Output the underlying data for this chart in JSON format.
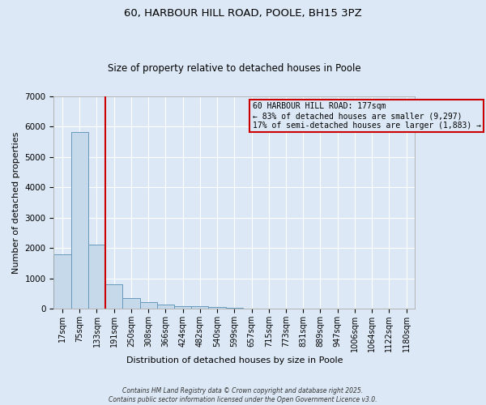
{
  "title1": "60, HARBOUR HILL ROAD, POOLE, BH15 3PZ",
  "title2": "Size of property relative to detached houses in Poole",
  "xlabel": "Distribution of detached houses by size in Poole",
  "ylabel": "Number of detached properties",
  "categories": [
    "17sqm",
    "75sqm",
    "133sqm",
    "191sqm",
    "250sqm",
    "308sqm",
    "366sqm",
    "424sqm",
    "482sqm",
    "540sqm",
    "599sqm",
    "657sqm",
    "715sqm",
    "773sqm",
    "831sqm",
    "889sqm",
    "947sqm",
    "1006sqm",
    "1064sqm",
    "1122sqm",
    "1180sqm"
  ],
  "bar_heights": [
    1800,
    5820,
    2100,
    820,
    350,
    220,
    130,
    90,
    80,
    60,
    30,
    5,
    5,
    0,
    0,
    0,
    0,
    0,
    0,
    0,
    0
  ],
  "bar_color": "#c6d9ea",
  "bar_edge_color": "#6699bb",
  "property_line_color": "#cc0000",
  "property_line_x": 2.5,
  "annotation_line1": "60 HARBOUR HILL ROAD: 177sqm",
  "annotation_line2": "← 83% of detached houses are smaller (9,297)",
  "annotation_line3": "17% of semi-detached houses are larger (1,883) →",
  "annotation_box_color": "#cc0000",
  "ylim": [
    0,
    7000
  ],
  "yticks": [
    0,
    1000,
    2000,
    3000,
    4000,
    5000,
    6000,
    7000
  ],
  "background_color": "#dce8f5",
  "grid_color": "#ffffff",
  "footer_line1": "Contains HM Land Registry data © Crown copyright and database right 2025.",
  "footer_line2": "Contains public sector information licensed under the Open Government Licence v3.0.",
  "title_fontsize": 9.5,
  "subtitle_fontsize": 8.5
}
